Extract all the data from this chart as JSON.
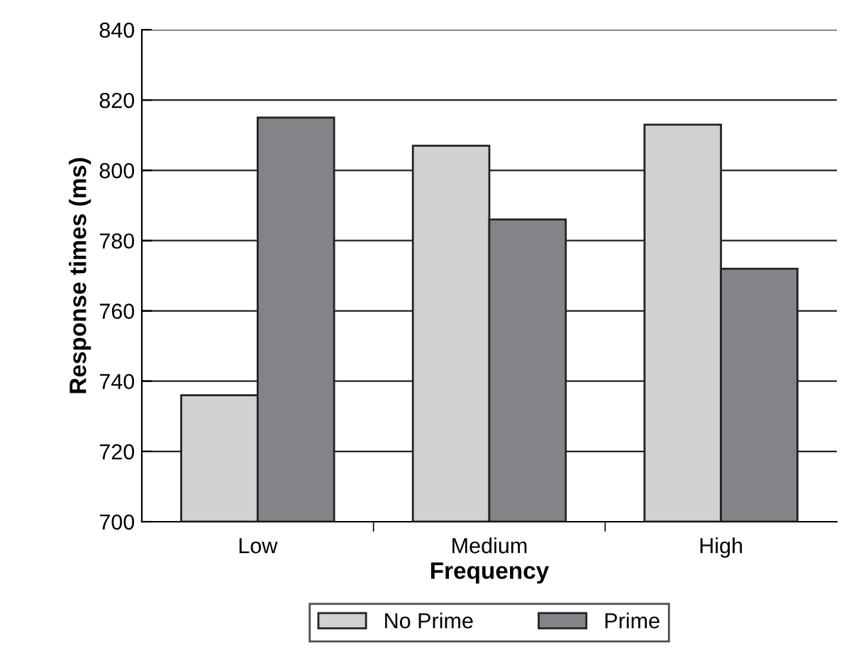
{
  "chart_data": {
    "type": "bar",
    "xlabel": "Frequency",
    "ylabel": "Response times (ms)",
    "categories": [
      "Low",
      "Medium",
      "High"
    ],
    "series": [
      {
        "name": "No Prime",
        "color": "#d0d1d3",
        "values": [
          736,
          807,
          813
        ]
      },
      {
        "name": "Prime",
        "color": "#838488",
        "values": [
          815,
          786,
          772
        ]
      }
    ],
    "ylim": [
      700,
      840
    ],
    "yticks": [
      700,
      720,
      740,
      760,
      780,
      800,
      820,
      840
    ],
    "grid": "y",
    "legend": "bottom"
  }
}
